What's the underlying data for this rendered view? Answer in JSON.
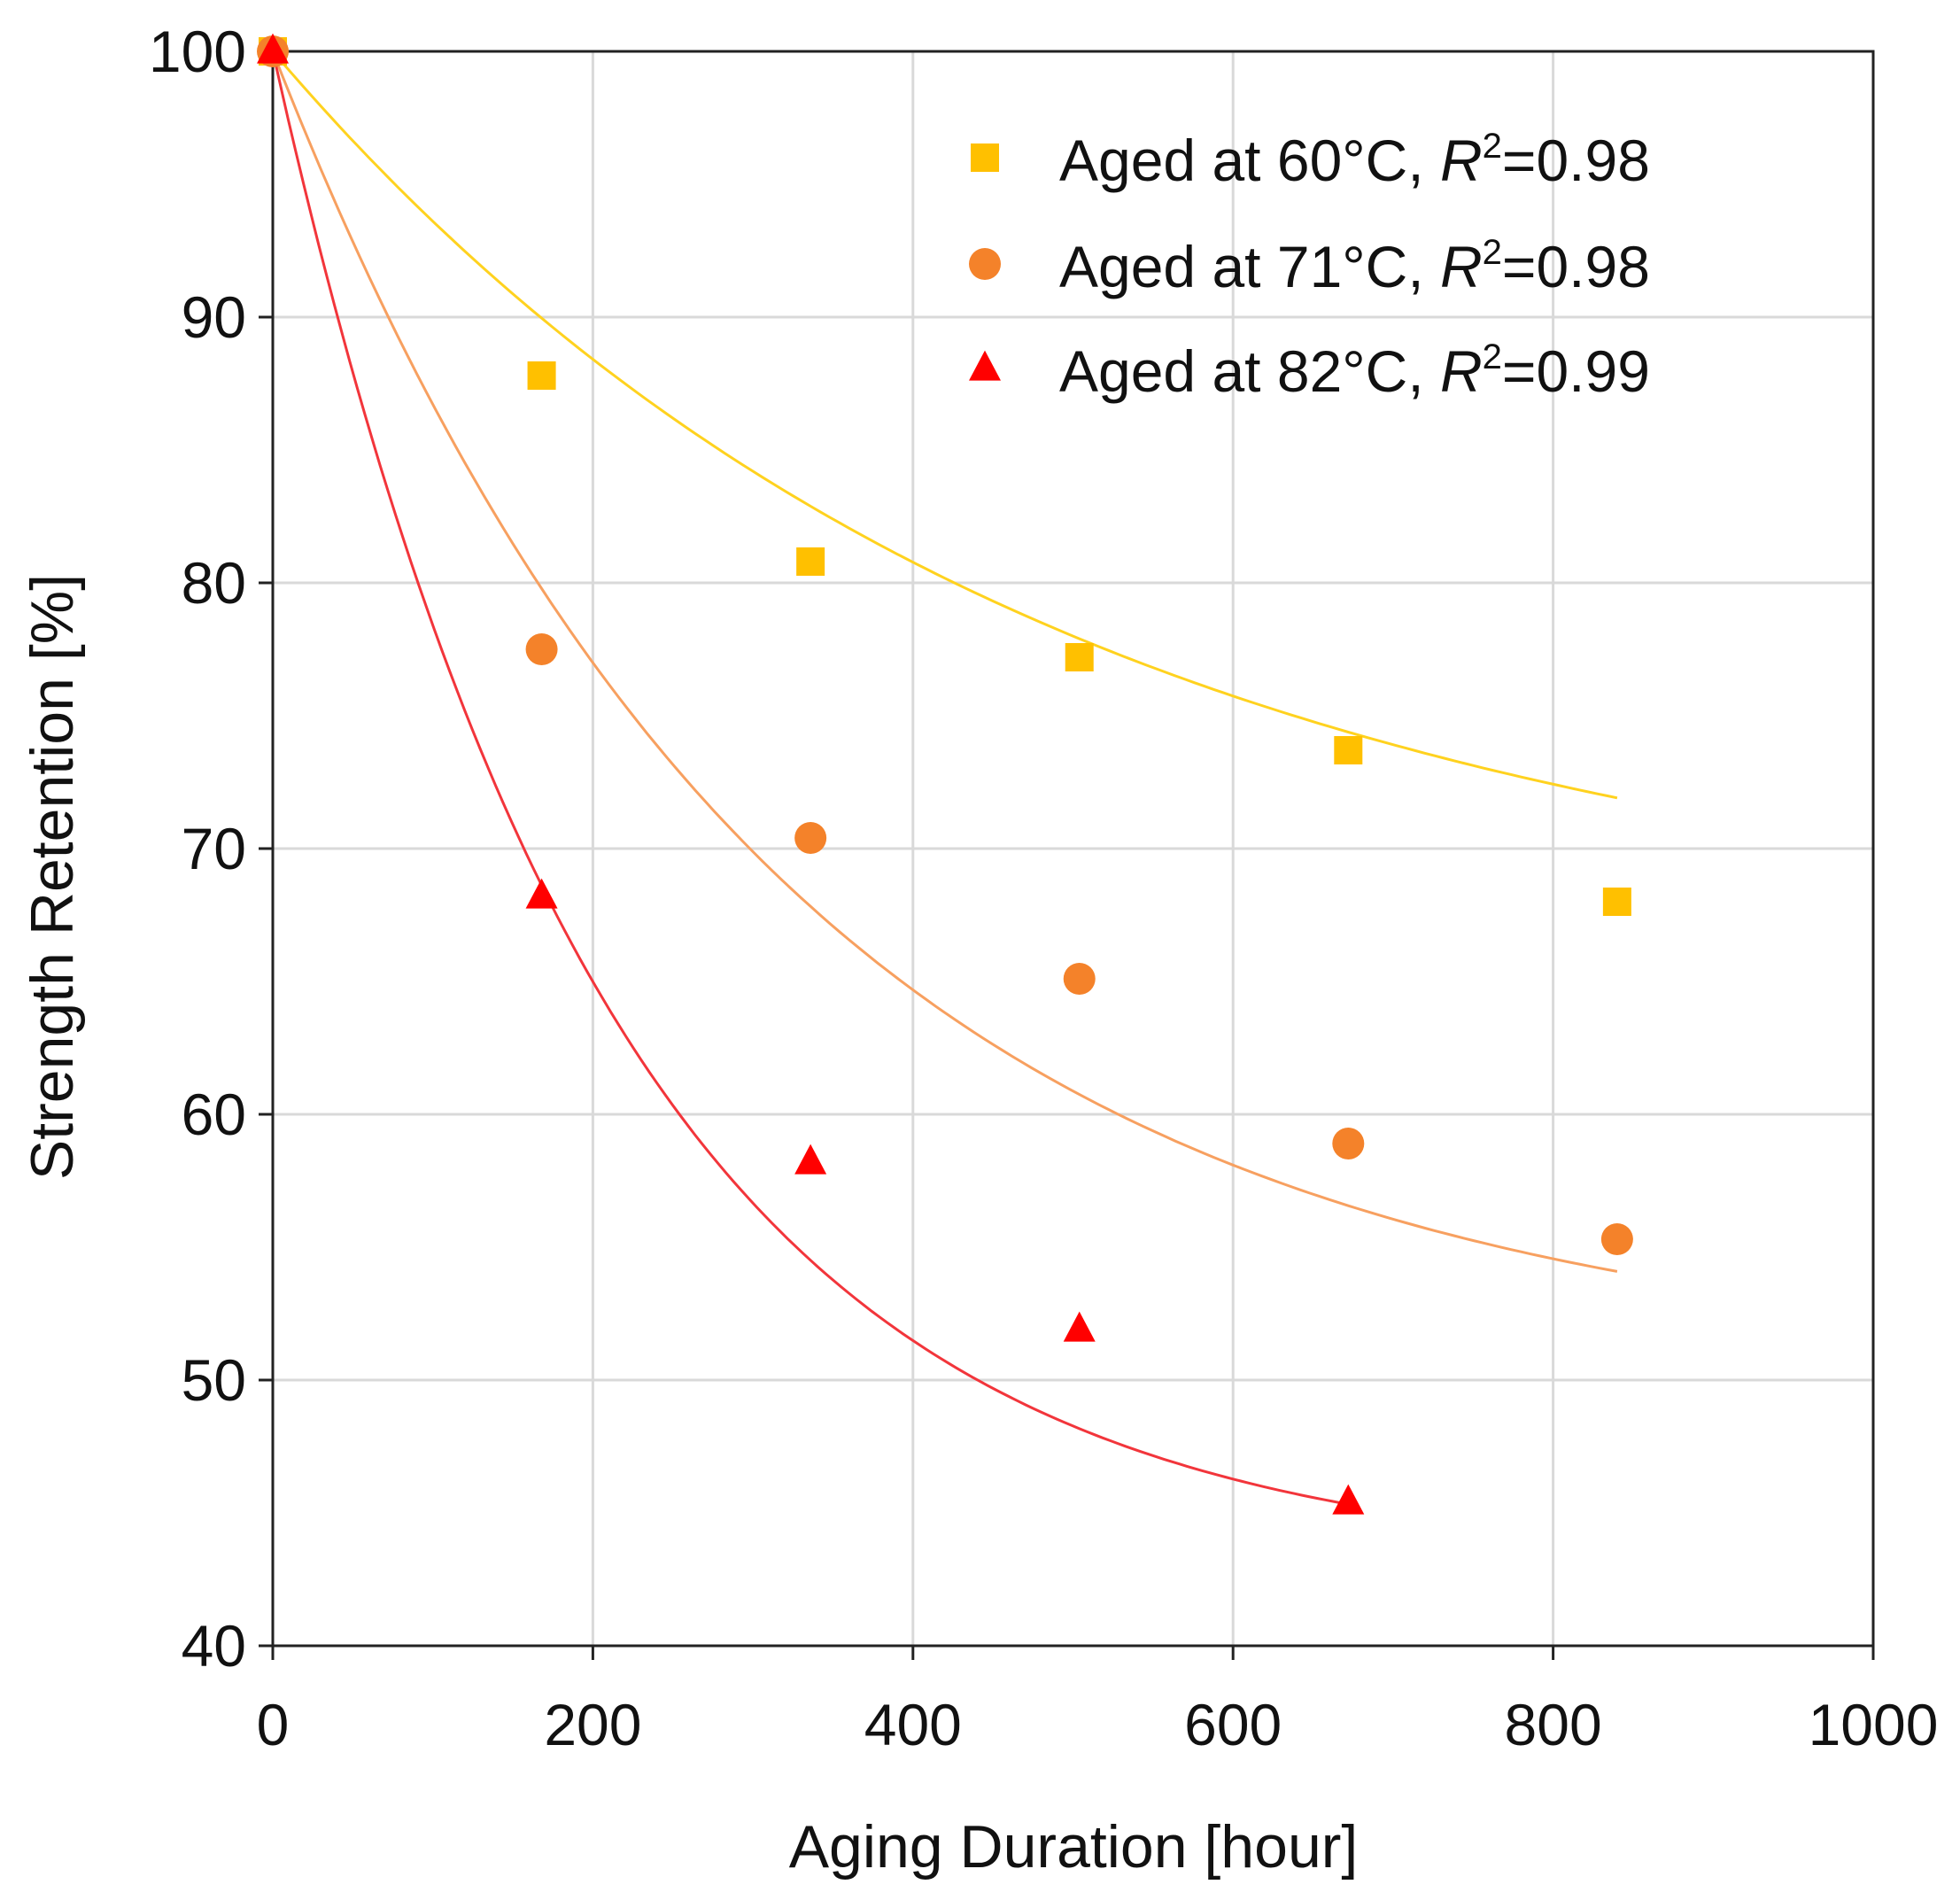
{
  "chart_data": {
    "type": "scatter",
    "title": "",
    "xlabel": "Aging Duration [hour]",
    "ylabel": "Strength Retention [%]",
    "xlim": [
      0,
      1000
    ],
    "ylim": [
      40,
      100
    ],
    "xticks": [
      0,
      200,
      400,
      600,
      800,
      1000
    ],
    "yticks": [
      40,
      50,
      60,
      70,
      80,
      90,
      100
    ],
    "grid": true,
    "legend_position": "top-right",
    "series": [
      {
        "name": "Aged at 60°C",
        "legend_prefix": "Aged at 60°C, ",
        "r_symbol": "R",
        "r_exponent": "2",
        "r_value": "=0.98",
        "marker": "square",
        "color": "#FFC000",
        "fit_color": "#FFD21F",
        "x": [
          0,
          168,
          336,
          504,
          672,
          840
        ],
        "y": [
          100,
          87.8,
          80.8,
          77.2,
          73.7,
          68.0
        ],
        "fit": {
          "model": "exp_decay",
          "a": 34.0,
          "tau": 480,
          "c": 66.0,
          "x_end": 840
        }
      },
      {
        "name": "Aged at 71°C",
        "legend_prefix": "Aged at 71°C, ",
        "r_symbol": "R",
        "r_exponent": "2",
        "r_value": "=0.98",
        "marker": "circle",
        "color": "#F4822A",
        "fit_color": "#F7A060",
        "x": [
          0,
          168,
          336,
          504,
          672,
          840
        ],
        "y": [
          100,
          77.5,
          70.4,
          65.1,
          58.9,
          55.3
        ],
        "fit": {
          "model": "exp_decay",
          "a": 49.5,
          "tau": 320,
          "c": 50.5,
          "x_end": 840
        }
      },
      {
        "name": "Aged at 82°C",
        "legend_prefix": "Aged at 82°C, ",
        "r_symbol": "R",
        "r_exponent": "2",
        "r_value": "=0.99",
        "marker": "triangle",
        "color": "#FF0000",
        "fit_color": "#F2353B",
        "x": [
          0,
          168,
          336,
          504,
          672
        ],
        "y": [
          100,
          68.2,
          58.2,
          51.9,
          45.4
        ],
        "fit": {
          "model": "exp_decay",
          "a": 57.0,
          "tau": 210,
          "c": 43.0,
          "x_end": 672
        }
      }
    ]
  }
}
